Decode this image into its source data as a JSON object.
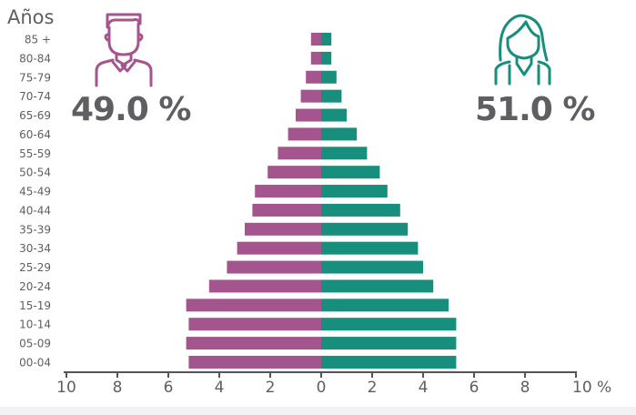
{
  "chart_data": {
    "type": "bar",
    "orientation": "horizontal-pyramid",
    "ylabel": "Años",
    "xlabel_unit": "%",
    "categories": [
      "85 +",
      "80-84",
      "75-79",
      "70-74",
      "65-69",
      "60-64",
      "55-59",
      "50-54",
      "45-49",
      "40-44",
      "35-39",
      "30-34",
      "25-29",
      "20-24",
      "15-19",
      "10-14",
      "05-09",
      "00-04"
    ],
    "series": [
      {
        "side": "left",
        "color": "#a5558e",
        "values": [
          0.4,
          0.4,
          0.6,
          0.8,
          1.0,
          1.3,
          1.7,
          2.1,
          2.6,
          2.7,
          3.0,
          3.3,
          3.7,
          4.4,
          5.3,
          5.2,
          5.3,
          5.2
        ]
      },
      {
        "side": "right",
        "color": "#188e7c",
        "values": [
          0.4,
          0.4,
          0.6,
          0.8,
          1.0,
          1.4,
          1.8,
          2.3,
          2.6,
          3.1,
          3.4,
          3.8,
          4.0,
          4.4,
          5.0,
          5.3,
          5.3,
          5.3
        ]
      }
    ],
    "xlim": [
      -10,
      10
    ],
    "x_tick_labels": [
      "10",
      "8",
      "6",
      "4",
      "2",
      "0",
      "2",
      "4",
      "6",
      "8",
      "10 %"
    ],
    "grid": false,
    "legend": "none"
  },
  "male": {
    "percent": "49.0 %",
    "icon": "man-icon",
    "color": "#a5558e"
  },
  "female": {
    "percent": "51.0 %",
    "icon": "woman-icon",
    "color": "#188e7c"
  }
}
